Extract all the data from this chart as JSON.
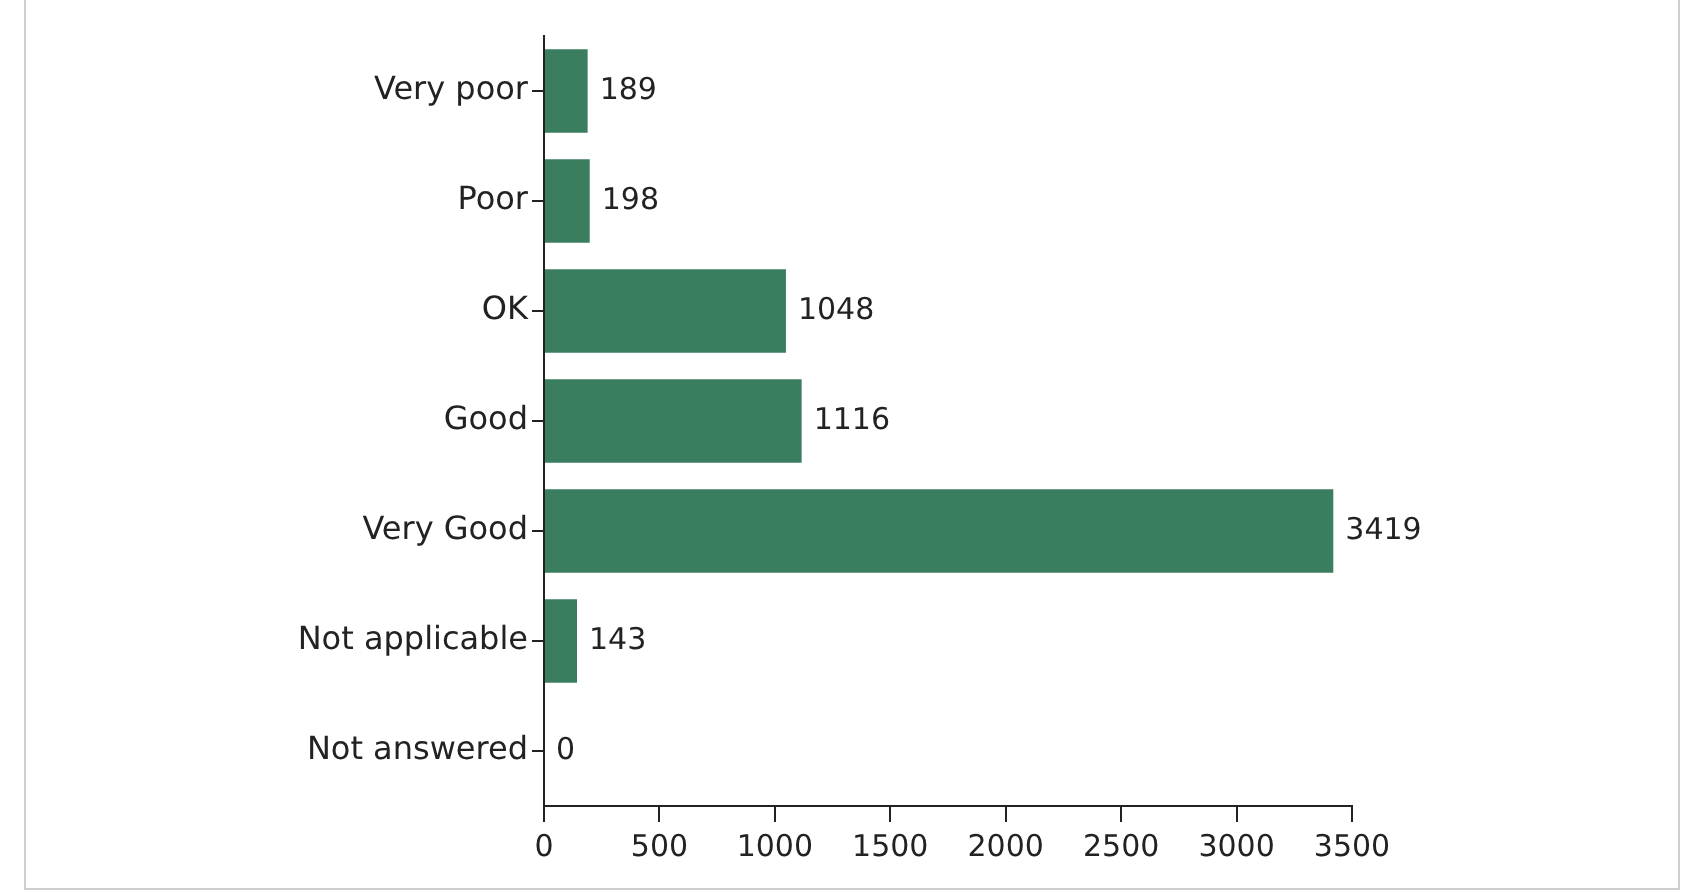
{
  "chart_data": {
    "type": "bar",
    "orientation": "horizontal",
    "categories": [
      "Very poor",
      "Poor",
      "OK",
      "Good",
      "Very Good",
      "Not applicable",
      "Not answered"
    ],
    "values": [
      189,
      198,
      1048,
      1116,
      3419,
      143,
      0
    ],
    "color": "#3b7d5f",
    "xlim": [
      0,
      3500
    ],
    "xticks": [
      0,
      500,
      1000,
      1500,
      2000,
      2500,
      3000,
      3500
    ],
    "grid": false,
    "legend": false,
    "data_labels": true
  }
}
